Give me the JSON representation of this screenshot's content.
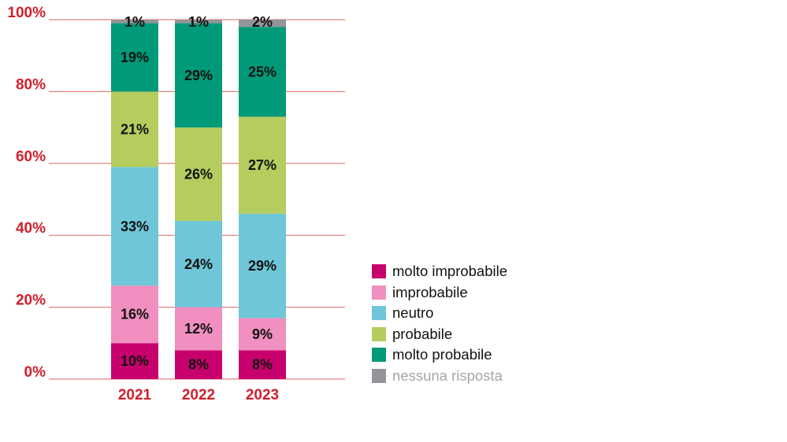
{
  "chart_data": {
    "type": "bar",
    "stacked": true,
    "categories": [
      "2021",
      "2022",
      "2023"
    ],
    "series": [
      {
        "name": "molto improbabile",
        "color": "#c8006e",
        "values": [
          10,
          8,
          8
        ]
      },
      {
        "name": "improbabile",
        "color": "#f08fc0",
        "values": [
          16,
          12,
          9
        ]
      },
      {
        "name": "neutro",
        "color": "#6ec6d8",
        "values": [
          33,
          24,
          29
        ]
      },
      {
        "name": "probabile",
        "color": "#b5cc5e",
        "values": [
          21,
          26,
          27
        ]
      },
      {
        "name": "molto probabile",
        "color": "#009a78",
        "values": [
          19,
          29,
          25
        ]
      },
      {
        "name": "nessuna risposta",
        "color": "#939598",
        "values": [
          1,
          1,
          2
        ]
      }
    ],
    "value_labels": [
      [
        "10%",
        "16%",
        "33%",
        "21%",
        "19%",
        "1%"
      ],
      [
        "8%",
        "12%",
        "24%",
        "26%",
        "29%",
        "1%"
      ],
      [
        "8%",
        "9%",
        "29%",
        "27%",
        "25%",
        "2%"
      ]
    ],
    "y_ticks": [
      0,
      20,
      40,
      60,
      80,
      100
    ],
    "y_tick_labels": [
      "0%",
      "20%",
      "40%",
      "60%",
      "80%",
      "100%"
    ],
    "ylim": [
      0,
      100
    ],
    "title": "",
    "xlabel": "",
    "ylabel": "",
    "grid": true,
    "legend_position": "right",
    "colors": {
      "axis_text": "#d0202e",
      "grid": "#e06666"
    }
  }
}
